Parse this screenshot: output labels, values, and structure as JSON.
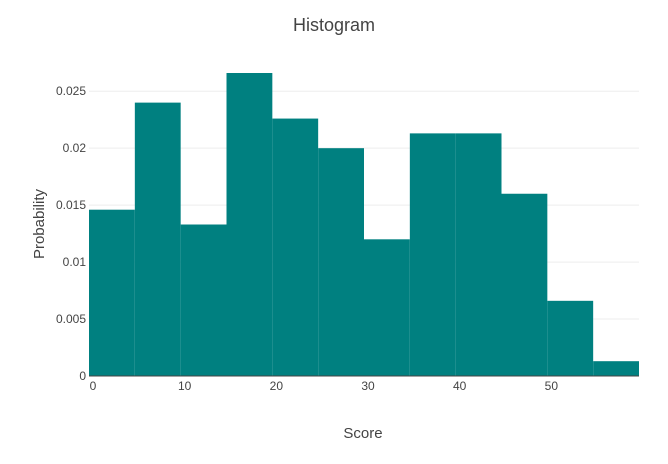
{
  "chart_data": {
    "type": "bar",
    "title": "Histogram",
    "xlabel": "Score",
    "ylabel": "Probability",
    "bin_width": 5,
    "bins": [
      {
        "start": 0,
        "end": 5,
        "value": 0.0146
      },
      {
        "start": 5,
        "end": 10,
        "value": 0.024
      },
      {
        "start": 10,
        "end": 15,
        "value": 0.0133
      },
      {
        "start": 15,
        "end": 20,
        "value": 0.0266
      },
      {
        "start": 20,
        "end": 25,
        "value": 0.0226
      },
      {
        "start": 25,
        "end": 30,
        "value": 0.02
      },
      {
        "start": 30,
        "end": 35,
        "value": 0.012
      },
      {
        "start": 35,
        "end": 40,
        "value": 0.0213
      },
      {
        "start": 40,
        "end": 45,
        "value": 0.0213
      },
      {
        "start": 45,
        "end": 50,
        "value": 0.016
      },
      {
        "start": 50,
        "end": 55,
        "value": 0.0066
      },
      {
        "start": 55,
        "end": 60,
        "value": 0.0013
      }
    ],
    "xlim": [
      0,
      60
    ],
    "ylim": [
      0,
      0.0266
    ],
    "x_ticks": [
      0,
      10,
      20,
      30,
      40,
      50
    ],
    "x_tick_labels": [
      "0",
      "10",
      "20",
      "30",
      "40",
      "50"
    ],
    "y_ticks": [
      0,
      0.005,
      0.01,
      0.015,
      0.02,
      0.025
    ],
    "y_tick_labels": [
      "0",
      "0.005",
      "0.01",
      "0.015",
      "0.02",
      "0.025"
    ],
    "grid": true,
    "bar_color": "#008080",
    "grid_color": "#eeeeee"
  }
}
